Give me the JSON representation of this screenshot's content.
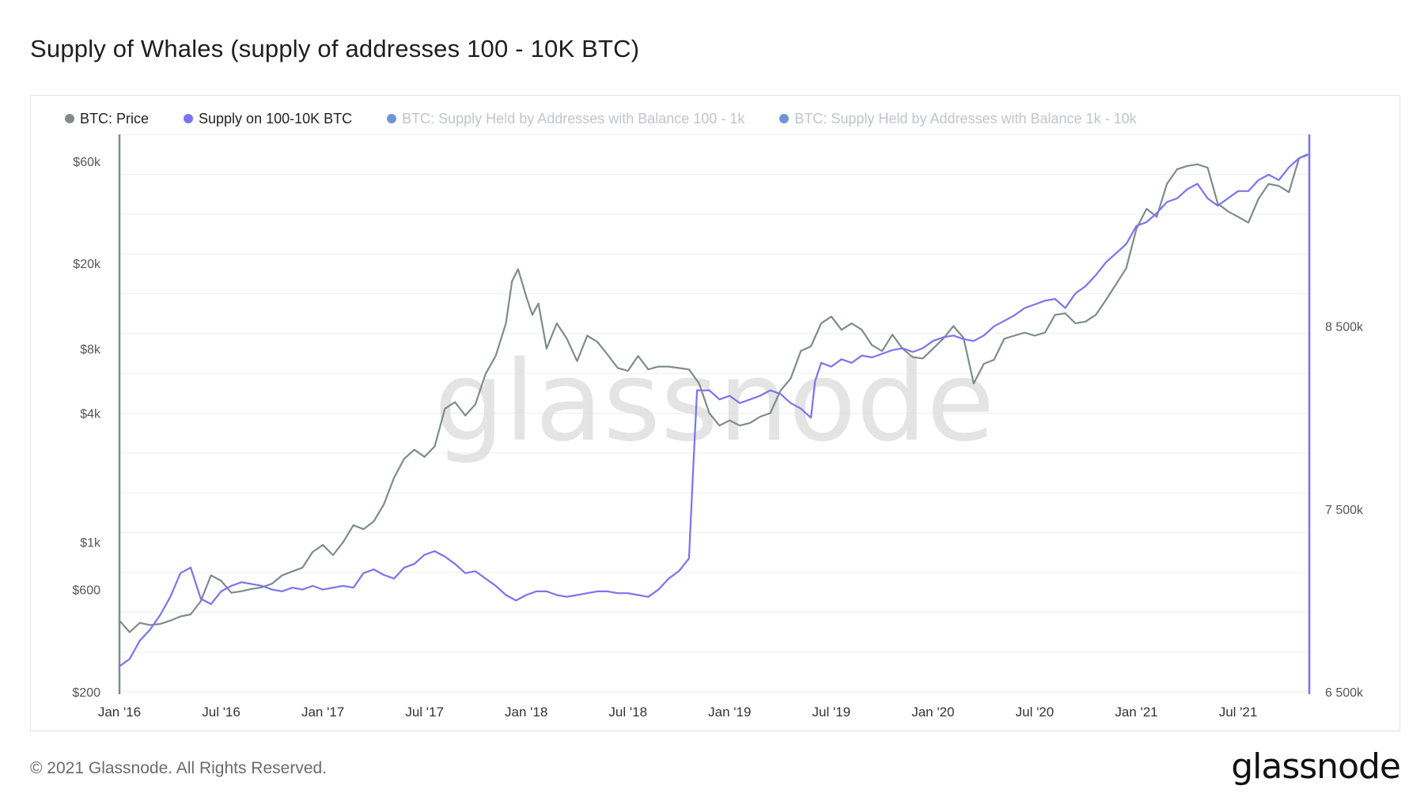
{
  "title": "Supply of Whales (supply of addresses 100 - 10K BTC)",
  "footer": "© 2021 Glassnode. All Rights Reserved.",
  "brand": "glassnode",
  "watermark": "glassnode",
  "colors": {
    "price": "#7f8c8a",
    "supply": "#7b73ee",
    "supply_100_1k": "#6c96d8",
    "supply_1k_10k": "#6c96d8",
    "grid": "#eeeeee",
    "axis_text": "#555555"
  },
  "legend": [
    {
      "label": "BTC: Price",
      "color": "#7f8c8a",
      "dim": false
    },
    {
      "label": "Supply on 100-10K BTC",
      "color": "#7b73ee",
      "dim": false
    },
    {
      "label": "BTC: Supply Held by Addresses with Balance 100 - 1k",
      "color": "#6c96d8",
      "dim": true
    },
    {
      "label": "BTC: Supply Held by Addresses with Balance 1k - 10k",
      "color": "#6c96d8",
      "dim": true
    }
  ],
  "chart_data": {
    "type": "line",
    "title": "Supply of Whales (supply of addresses 100 - 10K BTC)",
    "x_range": [
      2016.0,
      2021.85
    ],
    "x_ticks": [
      {
        "label": "Jan '16",
        "value": 2016.0
      },
      {
        "label": "Jul '16",
        "value": 2016.5
      },
      {
        "label": "Jan '17",
        "value": 2017.0
      },
      {
        "label": "Jul '17",
        "value": 2017.5
      },
      {
        "label": "Jan '18",
        "value": 2018.0
      },
      {
        "label": "Jul '18",
        "value": 2018.5
      },
      {
        "label": "Jan '19",
        "value": 2019.0
      },
      {
        "label": "Jul '19",
        "value": 2019.5
      },
      {
        "label": "Jan '20",
        "value": 2020.0
      },
      {
        "label": "Jul '20",
        "value": 2020.5
      },
      {
        "label": "Jan '21",
        "value": 2021.0
      },
      {
        "label": "Jul '21",
        "value": 2021.5
      }
    ],
    "y_left": {
      "scale": "log",
      "range": [
        200,
        80000
      ],
      "ticks": [
        {
          "label": "$200",
          "value": 200
        },
        {
          "label": "$600",
          "value": 600
        },
        {
          "label": "$1k",
          "value": 1000
        },
        {
          "label": "$4k",
          "value": 4000
        },
        {
          "label": "$8k",
          "value": 8000
        },
        {
          "label": "$20k",
          "value": 20000
        },
        {
          "label": "$60k",
          "value": 60000
        }
      ]
    },
    "y_right": {
      "scale": "linear",
      "range": [
        6500000,
        9550000
      ],
      "ticks": [
        {
          "label": "6 500k",
          "value": 6500000
        },
        {
          "label": "7 500k",
          "value": 7500000
        },
        {
          "label": "8 500k",
          "value": 8500000
        }
      ]
    },
    "series": [
      {
        "name": "BTC: Price",
        "axis": "left",
        "color": "#7f8c8a",
        "points": [
          [
            2016.0,
            430
          ],
          [
            2016.05,
            380
          ],
          [
            2016.1,
            420
          ],
          [
            2016.15,
            410
          ],
          [
            2016.2,
            415
          ],
          [
            2016.25,
            430
          ],
          [
            2016.3,
            450
          ],
          [
            2016.35,
            460
          ],
          [
            2016.4,
            530
          ],
          [
            2016.45,
            700
          ],
          [
            2016.5,
            660
          ],
          [
            2016.55,
            580
          ],
          [
            2016.6,
            590
          ],
          [
            2016.65,
            605
          ],
          [
            2016.7,
            615
          ],
          [
            2016.75,
            640
          ],
          [
            2016.8,
            700
          ],
          [
            2016.85,
            730
          ],
          [
            2016.9,
            760
          ],
          [
            2016.95,
            900
          ],
          [
            2017.0,
            970
          ],
          [
            2017.05,
            870
          ],
          [
            2017.1,
            1000
          ],
          [
            2017.15,
            1200
          ],
          [
            2017.2,
            1150
          ],
          [
            2017.25,
            1250
          ],
          [
            2017.3,
            1500
          ],
          [
            2017.35,
            2000
          ],
          [
            2017.4,
            2450
          ],
          [
            2017.45,
            2700
          ],
          [
            2017.5,
            2500
          ],
          [
            2017.55,
            2800
          ],
          [
            2017.6,
            4200
          ],
          [
            2017.65,
            4500
          ],
          [
            2017.7,
            3900
          ],
          [
            2017.75,
            4400
          ],
          [
            2017.8,
            6100
          ],
          [
            2017.85,
            7400
          ],
          [
            2017.9,
            10500
          ],
          [
            2017.93,
            16500
          ],
          [
            2017.96,
            18800
          ],
          [
            2018.0,
            14000
          ],
          [
            2018.03,
            11500
          ],
          [
            2018.06,
            13000
          ],
          [
            2018.1,
            8000
          ],
          [
            2018.15,
            10500
          ],
          [
            2018.2,
            8900
          ],
          [
            2018.25,
            7000
          ],
          [
            2018.3,
            9200
          ],
          [
            2018.35,
            8600
          ],
          [
            2018.4,
            7500
          ],
          [
            2018.45,
            6500
          ],
          [
            2018.5,
            6300
          ],
          [
            2018.55,
            7400
          ],
          [
            2018.6,
            6400
          ],
          [
            2018.65,
            6600
          ],
          [
            2018.7,
            6600
          ],
          [
            2018.75,
            6500
          ],
          [
            2018.8,
            6400
          ],
          [
            2018.85,
            5500
          ],
          [
            2018.9,
            4000
          ],
          [
            2018.95,
            3500
          ],
          [
            2019.0,
            3700
          ],
          [
            2019.05,
            3500
          ],
          [
            2019.1,
            3600
          ],
          [
            2019.15,
            3850
          ],
          [
            2019.2,
            4000
          ],
          [
            2019.25,
            5100
          ],
          [
            2019.3,
            5800
          ],
          [
            2019.35,
            7800
          ],
          [
            2019.4,
            8200
          ],
          [
            2019.45,
            10500
          ],
          [
            2019.5,
            11300
          ],
          [
            2019.55,
            9800
          ],
          [
            2019.6,
            10500
          ],
          [
            2019.65,
            9800
          ],
          [
            2019.7,
            8300
          ],
          [
            2019.75,
            7800
          ],
          [
            2019.8,
            9300
          ],
          [
            2019.85,
            8000
          ],
          [
            2019.9,
            7300
          ],
          [
            2019.95,
            7200
          ],
          [
            2020.0,
            8000
          ],
          [
            2020.05,
            8900
          ],
          [
            2020.1,
            10200
          ],
          [
            2020.15,
            9000
          ],
          [
            2020.2,
            5500
          ],
          [
            2020.25,
            6800
          ],
          [
            2020.3,
            7100
          ],
          [
            2020.35,
            8900
          ],
          [
            2020.4,
            9200
          ],
          [
            2020.45,
            9500
          ],
          [
            2020.5,
            9200
          ],
          [
            2020.55,
            9500
          ],
          [
            2020.6,
            11500
          ],
          [
            2020.65,
            11700
          ],
          [
            2020.7,
            10500
          ],
          [
            2020.75,
            10700
          ],
          [
            2020.8,
            11500
          ],
          [
            2020.85,
            13500
          ],
          [
            2020.9,
            16000
          ],
          [
            2020.95,
            19000
          ],
          [
            2021.0,
            29000
          ],
          [
            2021.05,
            36000
          ],
          [
            2021.1,
            33000
          ],
          [
            2021.15,
            47000
          ],
          [
            2021.2,
            55000
          ],
          [
            2021.25,
            57000
          ],
          [
            2021.3,
            58000
          ],
          [
            2021.35,
            56000
          ],
          [
            2021.4,
            38000
          ],
          [
            2021.45,
            35000
          ],
          [
            2021.5,
            33000
          ],
          [
            2021.55,
            31000
          ],
          [
            2021.6,
            40000
          ],
          [
            2021.65,
            47000
          ],
          [
            2021.7,
            46000
          ],
          [
            2021.75,
            43000
          ],
          [
            2021.8,
            62000
          ],
          [
            2021.84,
            64000
          ]
        ]
      },
      {
        "name": "Supply on 100-10K BTC",
        "axis": "right",
        "color": "#7b73ee",
        "points": [
          [
            2016.0,
            6640000
          ],
          [
            2016.05,
            6680000
          ],
          [
            2016.1,
            6780000
          ],
          [
            2016.15,
            6840000
          ],
          [
            2016.2,
            6920000
          ],
          [
            2016.25,
            7020000
          ],
          [
            2016.3,
            7150000
          ],
          [
            2016.35,
            7180000
          ],
          [
            2016.4,
            7010000
          ],
          [
            2016.45,
            6980000
          ],
          [
            2016.5,
            7050000
          ],
          [
            2016.55,
            7080000
          ],
          [
            2016.6,
            7100000
          ],
          [
            2016.65,
            7090000
          ],
          [
            2016.7,
            7080000
          ],
          [
            2016.75,
            7060000
          ],
          [
            2016.8,
            7050000
          ],
          [
            2016.85,
            7070000
          ],
          [
            2016.9,
            7060000
          ],
          [
            2016.95,
            7080000
          ],
          [
            2017.0,
            7060000
          ],
          [
            2017.05,
            7070000
          ],
          [
            2017.1,
            7080000
          ],
          [
            2017.15,
            7070000
          ],
          [
            2017.2,
            7150000
          ],
          [
            2017.25,
            7170000
          ],
          [
            2017.3,
            7140000
          ],
          [
            2017.35,
            7120000
          ],
          [
            2017.4,
            7180000
          ],
          [
            2017.45,
            7200000
          ],
          [
            2017.5,
            7250000
          ],
          [
            2017.55,
            7270000
          ],
          [
            2017.6,
            7240000
          ],
          [
            2017.65,
            7200000
          ],
          [
            2017.7,
            7150000
          ],
          [
            2017.75,
            7160000
          ],
          [
            2017.8,
            7120000
          ],
          [
            2017.85,
            7080000
          ],
          [
            2017.9,
            7030000
          ],
          [
            2017.95,
            7000000
          ],
          [
            2018.0,
            7030000
          ],
          [
            2018.05,
            7050000
          ],
          [
            2018.1,
            7050000
          ],
          [
            2018.15,
            7030000
          ],
          [
            2018.2,
            7020000
          ],
          [
            2018.25,
            7030000
          ],
          [
            2018.3,
            7040000
          ],
          [
            2018.35,
            7050000
          ],
          [
            2018.4,
            7050000
          ],
          [
            2018.45,
            7040000
          ],
          [
            2018.5,
            7040000
          ],
          [
            2018.55,
            7030000
          ],
          [
            2018.6,
            7020000
          ],
          [
            2018.65,
            7060000
          ],
          [
            2018.7,
            7120000
          ],
          [
            2018.75,
            7160000
          ],
          [
            2018.8,
            7230000
          ],
          [
            2018.82,
            7700000
          ],
          [
            2018.84,
            8150000
          ],
          [
            2018.9,
            8150000
          ],
          [
            2018.95,
            8100000
          ],
          [
            2019.0,
            8120000
          ],
          [
            2019.05,
            8080000
          ],
          [
            2019.1,
            8100000
          ],
          [
            2019.15,
            8120000
          ],
          [
            2019.2,
            8150000
          ],
          [
            2019.25,
            8130000
          ],
          [
            2019.3,
            8080000
          ],
          [
            2019.35,
            8050000
          ],
          [
            2019.4,
            8000000
          ],
          [
            2019.42,
            8200000
          ],
          [
            2019.45,
            8300000
          ],
          [
            2019.5,
            8280000
          ],
          [
            2019.55,
            8320000
          ],
          [
            2019.6,
            8300000
          ],
          [
            2019.65,
            8340000
          ],
          [
            2019.7,
            8330000
          ],
          [
            2019.75,
            8350000
          ],
          [
            2019.8,
            8370000
          ],
          [
            2019.85,
            8380000
          ],
          [
            2019.9,
            8360000
          ],
          [
            2019.95,
            8380000
          ],
          [
            2020.0,
            8420000
          ],
          [
            2020.05,
            8440000
          ],
          [
            2020.1,
            8450000
          ],
          [
            2020.15,
            8430000
          ],
          [
            2020.2,
            8420000
          ],
          [
            2020.25,
            8450000
          ],
          [
            2020.3,
            8500000
          ],
          [
            2020.35,
            8530000
          ],
          [
            2020.4,
            8560000
          ],
          [
            2020.45,
            8600000
          ],
          [
            2020.5,
            8620000
          ],
          [
            2020.55,
            8640000
          ],
          [
            2020.6,
            8650000
          ],
          [
            2020.65,
            8600000
          ],
          [
            2020.7,
            8680000
          ],
          [
            2020.75,
            8720000
          ],
          [
            2020.8,
            8780000
          ],
          [
            2020.85,
            8850000
          ],
          [
            2020.9,
            8900000
          ],
          [
            2020.95,
            8950000
          ],
          [
            2021.0,
            9050000
          ],
          [
            2021.05,
            9070000
          ],
          [
            2021.1,
            9120000
          ],
          [
            2021.15,
            9180000
          ],
          [
            2021.2,
            9200000
          ],
          [
            2021.25,
            9250000
          ],
          [
            2021.3,
            9280000
          ],
          [
            2021.35,
            9200000
          ],
          [
            2021.4,
            9160000
          ],
          [
            2021.45,
            9200000
          ],
          [
            2021.5,
            9240000
          ],
          [
            2021.55,
            9240000
          ],
          [
            2021.6,
            9300000
          ],
          [
            2021.65,
            9330000
          ],
          [
            2021.7,
            9300000
          ],
          [
            2021.75,
            9370000
          ],
          [
            2021.8,
            9420000
          ],
          [
            2021.84,
            9440000
          ]
        ]
      }
    ]
  }
}
